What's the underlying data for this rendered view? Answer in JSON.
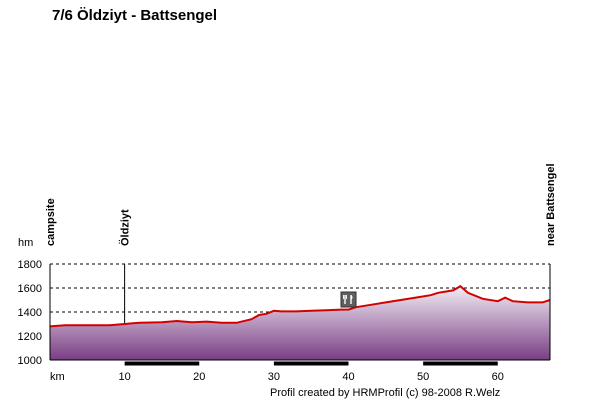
{
  "header": {
    "title": "7/6  Öldziyt - Battsengel"
  },
  "footer": {
    "credit": "Profil created by HRMProfil (c) 98-2008 R.Welz"
  },
  "colors": {
    "line": "#d40000",
    "fill_top": "#f2eef4",
    "fill_bottom": "#7a3d84",
    "grid": "#000000"
  },
  "icons": {
    "restaurant": "fork-knife-icon"
  },
  "chart_data": {
    "type": "area",
    "title": "7/6  Öldziyt - Battsengel",
    "xlabel": "km",
    "ylabel": "hm",
    "xlim": [
      0,
      67
    ],
    "ylim": [
      1000,
      1800
    ],
    "x_ticks": [
      10,
      20,
      30,
      40,
      50,
      60
    ],
    "y_ticks": [
      1000,
      1200,
      1400,
      1600,
      1800
    ],
    "grid": "horizontal dashed",
    "series": [
      {
        "x": [
          0,
          2,
          5,
          8,
          10,
          12,
          15,
          17,
          19,
          21,
          23,
          25,
          27,
          28,
          29,
          30,
          31,
          33,
          35,
          37,
          39,
          40,
          41,
          43,
          45,
          47,
          49,
          51,
          52,
          53,
          54,
          55,
          56,
          58,
          60,
          61,
          62,
          64,
          66,
          67
        ],
        "y": [
          1280,
          1290,
          1290,
          1290,
          1300,
          1310,
          1315,
          1325,
          1315,
          1320,
          1310,
          1310,
          1340,
          1375,
          1385,
          1410,
          1405,
          1405,
          1410,
          1415,
          1420,
          1420,
          1440,
          1460,
          1480,
          1500,
          1520,
          1540,
          1560,
          1570,
          1580,
          1615,
          1560,
          1510,
          1490,
          1520,
          1490,
          1480,
          1480,
          1500
        ]
      }
    ],
    "waypoints": [
      {
        "km": 0,
        "label": "campsite"
      },
      {
        "km": 10,
        "label": "Öldziyt"
      },
      {
        "km": 67,
        "label": "near Battsengel"
      }
    ],
    "poi": [
      {
        "km": 40,
        "type": "restaurant"
      }
    ]
  }
}
